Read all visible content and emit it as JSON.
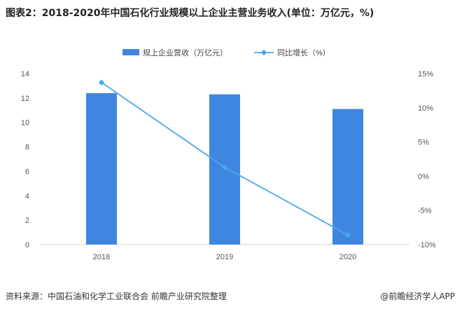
{
  "title": "图表2：2018-2020年中国石化行业规模以上企业主营业务收入(单位：万亿元，%)",
  "source": "资料来源：中国石油和化学工业联合会 前瞻产业研究院整理",
  "credit": "@前瞻经济学人APP",
  "chart_data": {
    "type": "bar+line",
    "categories": [
      "2018",
      "2019",
      "2020"
    ],
    "series": [
      {
        "name": "规上企业营收（万亿元）",
        "type": "bar",
        "axis": "left",
        "values": [
          12.4,
          12.3,
          11.1
        ],
        "color": "#3f86e0"
      },
      {
        "name": "同比增长（%）",
        "type": "line",
        "axis": "right",
        "values": [
          13.7,
          1.3,
          -8.6
        ],
        "color": "#4aa8ea"
      }
    ],
    "left_axis": {
      "ylim": [
        0,
        14
      ],
      "ticks": [
        "0",
        "2",
        "4",
        "6",
        "8",
        "10",
        "12",
        "14"
      ]
    },
    "right_axis": {
      "ylim": [
        -10,
        15
      ],
      "ticks": [
        "-10%",
        "-5%",
        "0%",
        "5%",
        "10%",
        "15%"
      ]
    },
    "legend": "top",
    "grid": false
  }
}
